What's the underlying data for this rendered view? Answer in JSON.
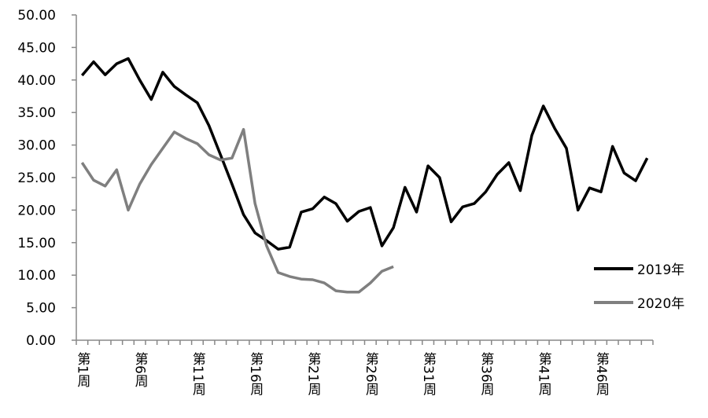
{
  "chart_data": {
    "type": "line",
    "categories": [
      "第1周",
      null,
      null,
      null,
      null,
      "第6周",
      null,
      null,
      null,
      null,
      "第11周",
      null,
      null,
      null,
      null,
      "第16周",
      null,
      null,
      null,
      null,
      "第21周",
      null,
      null,
      null,
      null,
      "第26周",
      null,
      null,
      null,
      null,
      "第31周",
      null,
      null,
      null,
      null,
      "第36周",
      null,
      null,
      null,
      null,
      "第41周",
      null,
      null,
      null,
      null,
      "第46周",
      null,
      null,
      null,
      null
    ],
    "series": [
      {
        "name": "2019年",
        "color": "#000000",
        "values": [
          40.7,
          42.8,
          40.8,
          42.5,
          43.3,
          40.0,
          37.0,
          41.2,
          39.0,
          37.7,
          36.5,
          33.0,
          28.5,
          24.0,
          19.3,
          16.5,
          15.3,
          14.0,
          14.3,
          19.7,
          20.2,
          22.0,
          21.0,
          18.3,
          19.8,
          20.4,
          14.5,
          17.3,
          23.5,
          19.7,
          26.8,
          25.0,
          18.2,
          20.5,
          21.0,
          22.8,
          25.5,
          27.3,
          23.0,
          31.5,
          36.0,
          32.5,
          29.5,
          20.0,
          23.4,
          22.8,
          29.8,
          25.7,
          24.5,
          28.0
        ]
      },
      {
        "name": "2020年",
        "color": "#7f7f7f",
        "values": [
          27.3,
          24.6,
          23.7,
          26.2,
          20.0,
          24.0,
          27.0,
          29.5,
          32.0,
          31.0,
          30.2,
          28.5,
          27.7,
          28.0,
          32.4,
          21.0,
          14.5,
          10.4,
          9.8,
          9.4,
          9.3,
          8.8,
          7.6,
          7.4,
          7.4,
          8.8,
          10.6,
          11.3,
          null,
          null,
          null,
          null,
          null,
          null,
          null,
          null,
          null,
          null,
          null,
          null,
          null,
          null,
          null,
          null,
          null,
          null,
          null,
          null,
          null,
          null
        ]
      }
    ],
    "ylim": [
      0,
      50
    ],
    "yticks": [
      {
        "value": 0,
        "label": "0.00"
      },
      {
        "value": 5,
        "label": "5.00"
      },
      {
        "value": 10,
        "label": "10.00"
      },
      {
        "value": 15,
        "label": "15.00"
      },
      {
        "value": 20,
        "label": "20.00"
      },
      {
        "value": 25,
        "label": "25.00"
      },
      {
        "value": 30,
        "label": "30.00"
      },
      {
        "value": 35,
        "label": "35.00"
      },
      {
        "value": 40,
        "label": "40.00"
      },
      {
        "value": 45,
        "label": "45.00"
      },
      {
        "value": 50,
        "label": "50.00"
      }
    ],
    "grid": false,
    "legend": "right"
  }
}
